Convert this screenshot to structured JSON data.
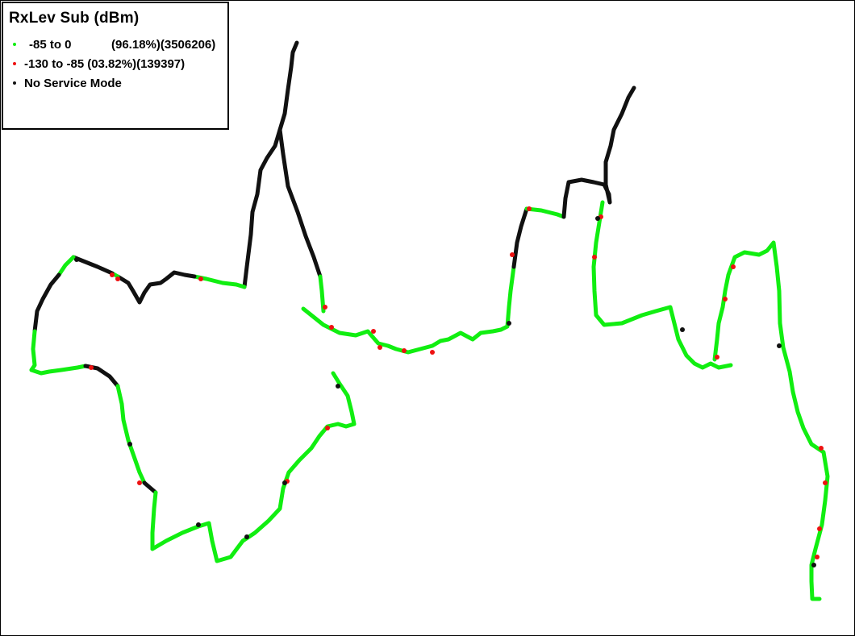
{
  "legend": {
    "title": "RxLev Sub (dBm)",
    "items": [
      {
        "range": "-85 to 0",
        "percent": "(96.18%)",
        "count": "(3506206)",
        "color": "#11ee11"
      },
      {
        "range": "-130 to -85",
        "percent": "(03.82%)",
        "count": "(139397)",
        "color": "#ee1111"
      },
      {
        "range": "No Service Mode",
        "percent": "",
        "count": "",
        "color": "#111111"
      }
    ]
  },
  "colors": {
    "good": "#11ee11",
    "bad": "#ee1111",
    "no_service": "#111111",
    "frame": "#000000",
    "background": "#ffffff"
  }
}
